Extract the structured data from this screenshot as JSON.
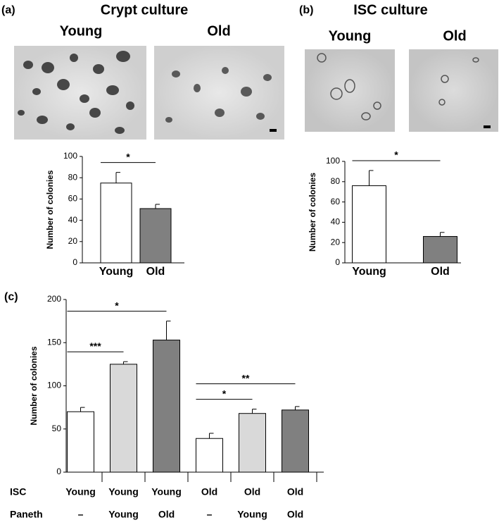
{
  "chart_data": [
    {
      "type": "bar",
      "panel_label": "(a)",
      "title": "Crypt culture",
      "image_labels": [
        "Young",
        "Old"
      ],
      "y_label": "Number of colonies",
      "categories": [
        "Young",
        "Old"
      ],
      "values": [
        75,
        51
      ],
      "errors": [
        10,
        4
      ],
      "colors": [
        "#ffffff",
        "#808080"
      ],
      "ylim": [
        0,
        100
      ],
      "yticks": [
        0,
        20,
        40,
        60,
        80,
        100
      ],
      "annotations": [
        {
          "text": "*",
          "between": [
            0,
            1
          ]
        }
      ]
    },
    {
      "type": "bar",
      "panel_label": "(b)",
      "title": "ISC culture",
      "image_labels": [
        "Young",
        "Old"
      ],
      "y_label": "Number of colonies",
      "categories": [
        "Young",
        "Old"
      ],
      "values": [
        76,
        26
      ],
      "errors": [
        15,
        4
      ],
      "colors": [
        "#ffffff",
        "#808080"
      ],
      "ylim": [
        0,
        100
      ],
      "yticks": [
        0,
        20,
        40,
        60,
        80,
        100
      ],
      "annotations": [
        {
          "text": "*",
          "between": [
            0,
            1
          ]
        }
      ]
    },
    {
      "type": "bar",
      "panel_label": "(c)",
      "y_label": "Number of colonies",
      "category_rows": [
        {
          "name": "ISC",
          "labels": [
            "Young",
            "Young",
            "Young",
            "Old",
            "Old",
            "Old"
          ]
        },
        {
          "name": "Paneth",
          "labels": [
            "–",
            "Young",
            "Old",
            "–",
            "Young",
            "Old"
          ]
        }
      ],
      "values": [
        70,
        125,
        153,
        39,
        68,
        72
      ],
      "errors": [
        5,
        3,
        22,
        6,
        5,
        4
      ],
      "colors": [
        "#ffffff",
        "#d9d9d9",
        "#808080",
        "#ffffff",
        "#d9d9d9",
        "#808080"
      ],
      "ylim": [
        0,
        200
      ],
      "yticks": [
        0,
        50,
        100,
        150,
        200
      ],
      "annotations": [
        {
          "text": "***",
          "between": [
            0,
            1
          ]
        },
        {
          "text": "*",
          "between": [
            0,
            2
          ]
        },
        {
          "text": "*",
          "between": [
            3,
            4
          ]
        },
        {
          "text": "**",
          "between": [
            3,
            5
          ]
        }
      ]
    }
  ]
}
